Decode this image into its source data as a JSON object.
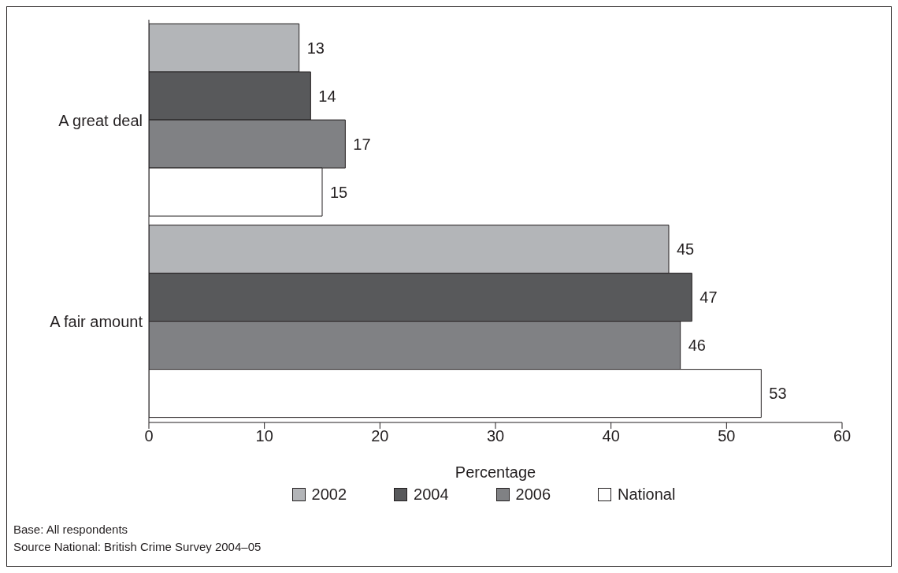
{
  "chart_data": {
    "type": "bar",
    "orientation": "horizontal",
    "categories": [
      "A great deal",
      "A fair amount"
    ],
    "series": [
      {
        "name": "2002",
        "color": "#b3b5b8",
        "values": [
          13,
          45
        ]
      },
      {
        "name": "2004",
        "color": "#58595b",
        "values": [
          14,
          47
        ]
      },
      {
        "name": "2006",
        "color": "#808184",
        "values": [
          17,
          46
        ]
      },
      {
        "name": "National",
        "color": "#ffffff",
        "values": [
          15,
          53
        ]
      }
    ],
    "xlim": [
      0,
      60
    ],
    "xticks": [
      0,
      10,
      20,
      30,
      40,
      50,
      60
    ],
    "xlabel": "Percentage",
    "data_labels": true,
    "legend": "bottom",
    "grid": false,
    "annotations": [
      "Base: All respondents",
      "Source National: British Crime Survey 2004–05"
    ]
  }
}
